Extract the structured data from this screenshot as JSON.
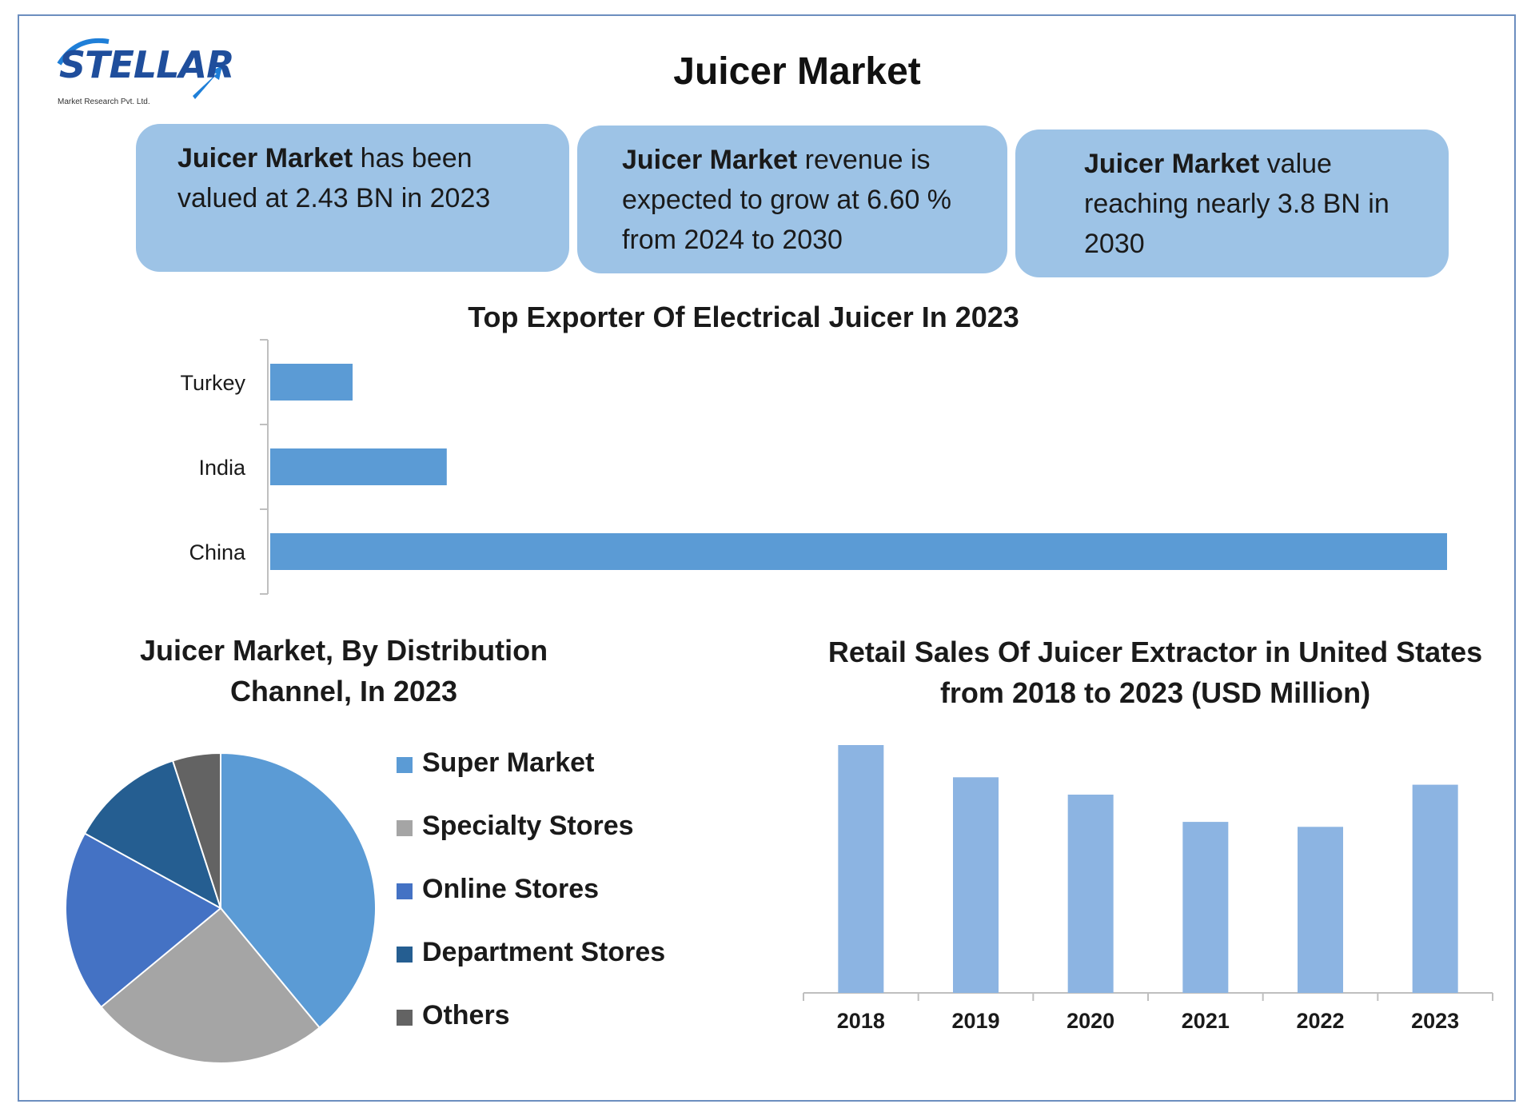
{
  "logo": {
    "brand": "STELLAR",
    "tagline": "Market Research Pvt. Ltd."
  },
  "title": "Juicer Market",
  "stats": [
    {
      "bold": "Juicer Market",
      "rest": " has been valued at 2.43 BN in 2023"
    },
    {
      "bold": "Juicer Market",
      "rest": " revenue is expected to grow at 6.60 % from 2024 to 2030"
    },
    {
      "bold": "Juicer Market",
      "rest": " value reaching nearly 3.8 BN in 2030"
    }
  ],
  "colors": {
    "frame": "#6c8ebf",
    "stat_box": "#9dc3e6",
    "exporter_bar": "#5b9bd5",
    "retail_bar": "#8cb4e2"
  },
  "chart_data": [
    {
      "type": "bar",
      "orientation": "horizontal",
      "title": "Top Exporter Of Electrical Juicer In 2023",
      "categories": [
        "Turkey",
        "India",
        "China"
      ],
      "values": [
        7,
        15,
        100
      ],
      "xlim": [
        0,
        100
      ],
      "xlabel": "",
      "ylabel": "",
      "grid": false
    },
    {
      "type": "pie",
      "title": "Juicer Market, By Distribution Channel, In 2023",
      "legend_position": "right",
      "slices": [
        {
          "label": "Super Market",
          "value": 39,
          "color": "#5b9bd5"
        },
        {
          "label": "Specialty Stores",
          "value": 25,
          "color": "#a5a5a5"
        },
        {
          "label": "Online Stores",
          "value": 19,
          "color": "#4472c4"
        },
        {
          "label": "Department Stores",
          "value": 12,
          "color": "#255e91"
        },
        {
          "label": "Others",
          "value": 5,
          "color": "#636363"
        }
      ]
    },
    {
      "type": "bar",
      "orientation": "vertical",
      "title": "Retail Sales Of Juicer Extractor in United States from 2018 to 2023 (USD Million)",
      "categories": [
        "2018",
        "2019",
        "2020",
        "2021",
        "2022",
        "2023"
      ],
      "values": [
        100,
        87,
        80,
        69,
        67,
        84
      ],
      "ylim": [
        0,
        100
      ],
      "xlabel": "",
      "ylabel": "",
      "grid": false
    }
  ]
}
